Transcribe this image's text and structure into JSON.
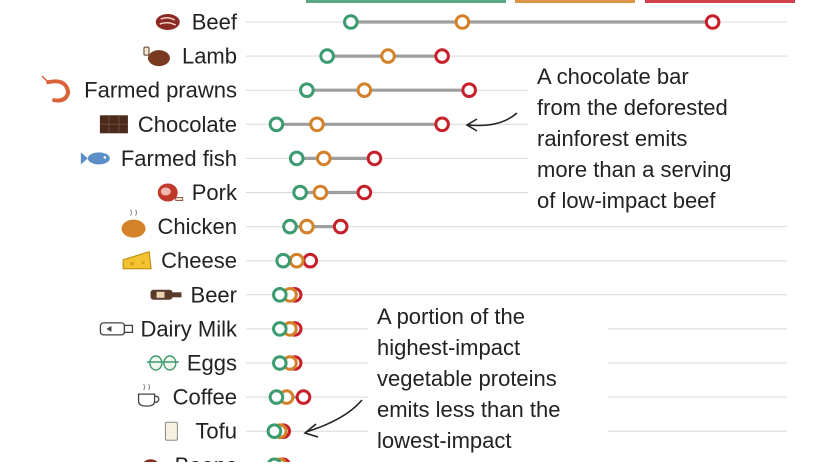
{
  "colors": {
    "low": "#3c9b6f",
    "typical": "#d4822a",
    "high": "#c8202a",
    "connector": "#9e9e9e",
    "gridline": "#d9d9d9",
    "text": "#222222"
  },
  "chart_data": {
    "type": "dot-range",
    "orientation": "horizontal",
    "grid": true,
    "legend": "top (cut off)",
    "series": [
      {
        "key": "low",
        "color": "#3c9b6f"
      },
      {
        "key": "typical",
        "color": "#d4822a"
      },
      {
        "key": "high",
        "color": "#c8202a"
      }
    ],
    "xlim": [
      0,
      8
    ],
    "rows": [
      {
        "label": "Beef",
        "icon": "steak-icon",
        "low": 1.55,
        "typical": 3.2,
        "high": 6.9
      },
      {
        "label": "Lamb",
        "icon": "lamb-roast-icon",
        "low": 1.2,
        "typical": 2.1,
        "high": 2.9
      },
      {
        "label": "Farmed prawns",
        "icon": "prawn-icon",
        "low": 0.9,
        "typical": 1.75,
        "high": 3.3
      },
      {
        "label": "Chocolate",
        "icon": "chocolate-bar-icon",
        "low": 0.45,
        "typical": 1.05,
        "high": 2.9
      },
      {
        "label": "Farmed fish",
        "icon": "fish-icon",
        "low": 0.75,
        "typical": 1.15,
        "high": 1.9
      },
      {
        "label": "Pork",
        "icon": "ham-icon",
        "low": 0.8,
        "typical": 1.1,
        "high": 1.75
      },
      {
        "label": "Chicken",
        "icon": "roast-chicken-icon",
        "low": 0.65,
        "typical": 0.9,
        "high": 1.4
      },
      {
        "label": "Cheese",
        "icon": "cheese-icon",
        "low": 0.55,
        "typical": 0.75,
        "high": 0.95
      },
      {
        "label": "Beer",
        "icon": "beer-bottle-icon",
        "low": 0.5,
        "typical": 0.65,
        "high": 0.72
      },
      {
        "label": "Dairy Milk",
        "icon": "milk-bottle-icon",
        "low": 0.5,
        "typical": 0.65,
        "high": 0.72
      },
      {
        "label": "Eggs",
        "icon": "eggs-icon",
        "low": 0.5,
        "typical": 0.65,
        "high": 0.72
      },
      {
        "label": "Coffee",
        "icon": "coffee-cup-icon",
        "low": 0.45,
        "typical": 0.6,
        "high": 0.85
      },
      {
        "label": "Tofu",
        "icon": "tofu-icon",
        "low": 0.42,
        "typical": 0.5,
        "high": 0.55
      },
      {
        "label": "Beans",
        "icon": "bean-icon",
        "low": 0.42,
        "typical": 0.5,
        "high": 0.55
      }
    ],
    "annotations": [
      {
        "lines": [
          "A chocolate bar",
          "from the deforested",
          "rainforest emits",
          "more than a serving",
          "of low-impact beef"
        ],
        "points_to": "Chocolate"
      },
      {
        "lines": [
          "A portion of the",
          "highest-impact",
          "vegetable proteins",
          "emits less than the",
          "lowest-impact"
        ],
        "points_to": "Tofu"
      }
    ]
  }
}
